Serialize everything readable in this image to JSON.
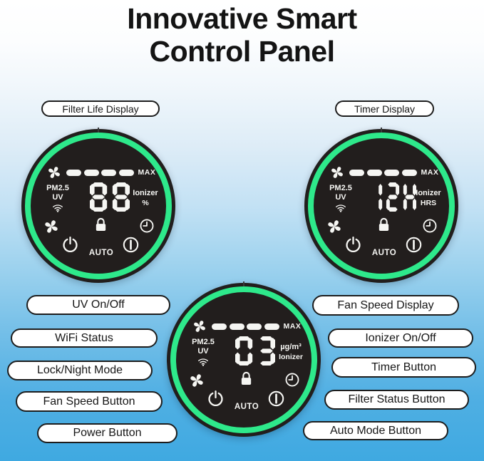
{
  "header": {
    "title_line1": "Innovative Smart",
    "title_line2": "Control Panel"
  },
  "callouts": {
    "top": [
      "Filter Life Display",
      "Timer Display"
    ],
    "left": [
      "UV On/Off",
      "WiFi Status",
      "Lock/Night Mode",
      "Fan Speed Button",
      "Power Button"
    ],
    "right": [
      "Fan Speed Display",
      "Ionizer On/Off",
      "Timer Button",
      "Filter Status Button",
      "Auto Mode Button"
    ]
  },
  "panel_common": {
    "max_label": "MAX",
    "pm_label": "PM2.5",
    "uv_label": "UV",
    "auto_label": "AUTO",
    "fan_speed_segments_lit": 4
  },
  "panels": [
    {
      "id": "filter-life-display",
      "display_value": "88",
      "unit_top": "Ionizer",
      "unit_bottom": "%"
    },
    {
      "id": "timer-display",
      "display_value": "12H",
      "unit_top": "Ionizer",
      "unit_bottom": "HRS"
    },
    {
      "id": "air-quality-display",
      "display_value": "03",
      "unit_top": "µg/m³",
      "unit_bottom": "Ionizer"
    }
  ],
  "icons": {
    "fan": "fan-icon",
    "wifi": "wifi-status-icon",
    "lock": "lock-night-mode-icon",
    "clock": "timer-clock-icon",
    "power": "power-icon",
    "standby": "auto-mode-reset-icon"
  },
  "colors": {
    "ring_green": "#2ee98b",
    "panel_dark": "#221e1d",
    "segment_white": "#f5f5f2",
    "background_top": "#ffffff",
    "background_bottom": "#3fa9e1"
  }
}
